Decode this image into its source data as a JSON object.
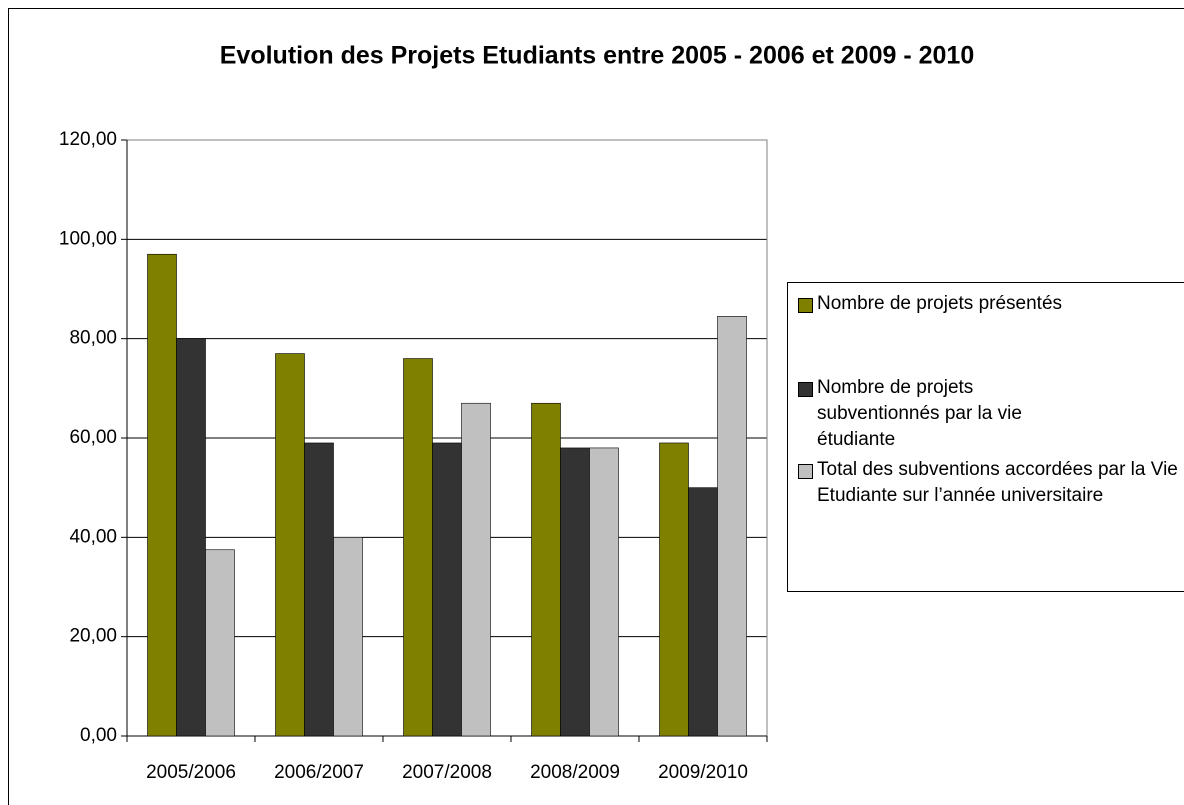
{
  "chart_data": {
    "type": "bar",
    "title": "Evolution des Projets Etudiants entre 2005 - 2006 et 2009 - 2010",
    "categories": [
      "2005/2006",
      "2006/2007",
      "2007/2008",
      "2008/2009",
      "2009/2010"
    ],
    "series": [
      {
        "name": "Nombre de projets présentés",
        "color": "#808000",
        "values": [
          97,
          77,
          76,
          67,
          59
        ]
      },
      {
        "name": "Nombre de projets subventionnés par la vie étudiante",
        "color": "#333333",
        "values": [
          80,
          59,
          59,
          58,
          50
        ]
      },
      {
        "name": "Total des subventions accordées par la Vie Etudiante sur l’année universitaire",
        "color": "#c0c0c0",
        "values": [
          37.5,
          40,
          67,
          58,
          84.5
        ]
      }
    ],
    "ylim": [
      0,
      120
    ],
    "yticks": [
      {
        "value": 0,
        "label": "0,00"
      },
      {
        "value": 20,
        "label": "20,00"
      },
      {
        "value": 40,
        "label": "40,00"
      },
      {
        "value": 60,
        "label": "60,00"
      },
      {
        "value": 80,
        "label": "80,00"
      },
      {
        "value": 100,
        "label": "100,00"
      },
      {
        "value": 120,
        "label": "120,00"
      }
    ],
    "grid": true,
    "legend": "right"
  }
}
